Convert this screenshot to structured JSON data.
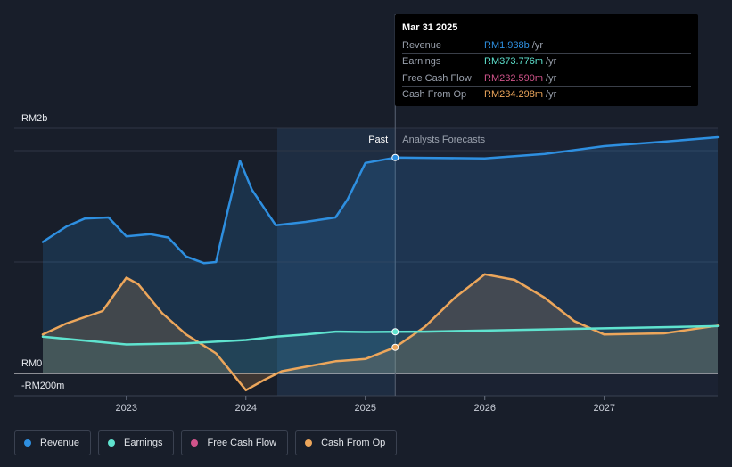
{
  "chart_data": {
    "type": "line",
    "y_axis_labels": [
      "RM2b",
      "RM0",
      "-RM200m"
    ],
    "x_ticks": [
      "2023",
      "2024",
      "2025",
      "2026",
      "2027"
    ],
    "xlim": [
      2022.3,
      2027.95
    ],
    "ylim": [
      -200,
      2100
    ],
    "divider_x": 2025.25,
    "past_label": "Past",
    "forecast_label": "Analysts Forecasts",
    "series": [
      {
        "name": "Revenue",
        "color": "#2e8fe0",
        "points": [
          [
            2022.3,
            1180
          ],
          [
            2022.5,
            1320
          ],
          [
            2022.65,
            1390
          ],
          [
            2022.85,
            1400
          ],
          [
            2023.0,
            1230
          ],
          [
            2023.2,
            1250
          ],
          [
            2023.35,
            1220
          ],
          [
            2023.5,
            1050
          ],
          [
            2023.65,
            990
          ],
          [
            2023.75,
            1000
          ],
          [
            2023.85,
            1470
          ],
          [
            2023.95,
            1910
          ],
          [
            2024.05,
            1650
          ],
          [
            2024.25,
            1330
          ],
          [
            2024.5,
            1360
          ],
          [
            2024.75,
            1400
          ],
          [
            2024.85,
            1560
          ],
          [
            2025.0,
            1890
          ],
          [
            2025.25,
            1938
          ],
          [
            2025.5,
            1935
          ],
          [
            2026.0,
            1930
          ],
          [
            2026.5,
            1970
          ],
          [
            2027.0,
            2040
          ],
          [
            2027.5,
            2080
          ],
          [
            2027.95,
            2120
          ]
        ]
      },
      {
        "name": "Earnings",
        "color": "#5fe3cf",
        "points": [
          [
            2022.3,
            330
          ],
          [
            2022.7,
            290
          ],
          [
            2023.0,
            260
          ],
          [
            2023.5,
            270
          ],
          [
            2024.0,
            300
          ],
          [
            2024.25,
            330
          ],
          [
            2024.5,
            350
          ],
          [
            2024.75,
            375
          ],
          [
            2025.0,
            372
          ],
          [
            2025.25,
            373.776
          ],
          [
            2025.5,
            375
          ],
          [
            2026.0,
            385
          ],
          [
            2026.5,
            395
          ],
          [
            2027.0,
            405
          ],
          [
            2027.5,
            415
          ],
          [
            2027.95,
            425
          ]
        ]
      },
      {
        "name": "Free Cash Flow",
        "color": "#d1548b",
        "points": []
      },
      {
        "name": "Cash From Op",
        "color": "#eca65b",
        "points": [
          [
            2022.3,
            350
          ],
          [
            2022.5,
            450
          ],
          [
            2022.8,
            560
          ],
          [
            2023.0,
            860
          ],
          [
            2023.1,
            800
          ],
          [
            2023.3,
            540
          ],
          [
            2023.5,
            350
          ],
          [
            2023.75,
            180
          ],
          [
            2023.85,
            50
          ],
          [
            2024.0,
            -150
          ],
          [
            2024.15,
            -60
          ],
          [
            2024.3,
            20
          ],
          [
            2024.5,
            60
          ],
          [
            2024.75,
            110
          ],
          [
            2025.0,
            130
          ],
          [
            2025.25,
            234.298
          ],
          [
            2025.5,
            420
          ],
          [
            2025.75,
            680
          ],
          [
            2026.0,
            890
          ],
          [
            2026.25,
            840
          ],
          [
            2026.5,
            680
          ],
          [
            2026.75,
            470
          ],
          [
            2027.0,
            350
          ],
          [
            2027.5,
            360
          ],
          [
            2027.95,
            430
          ]
        ]
      }
    ]
  },
  "tooltip": {
    "date": "Mar 31 2025",
    "rows": [
      {
        "label": "Revenue",
        "value": "RM1.938b",
        "unit": "/yr",
        "color": "#2e8fe0"
      },
      {
        "label": "Earnings",
        "value": "RM373.776m",
        "unit": "/yr",
        "color": "#5fe3cf"
      },
      {
        "label": "Free Cash Flow",
        "value": "RM232.590m",
        "unit": "/yr",
        "color": "#d1548b"
      },
      {
        "label": "Cash From Op",
        "value": "RM234.298m",
        "unit": "/yr",
        "color": "#eca65b"
      }
    ]
  },
  "legend": [
    {
      "label": "Revenue",
      "color": "#2e8fe0"
    },
    {
      "label": "Earnings",
      "color": "#5fe3cf"
    },
    {
      "label": "Free Cash Flow",
      "color": "#d1548b"
    },
    {
      "label": "Cash From Op",
      "color": "#eca65b"
    }
  ]
}
